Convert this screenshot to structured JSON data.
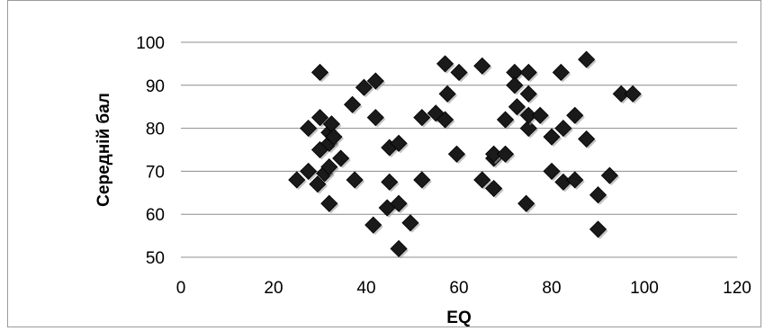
{
  "chart_data": {
    "type": "scatter",
    "xlabel": "EQ",
    "ylabel": "Середній бал",
    "xlim": [
      0,
      120
    ],
    "ylim": [
      50,
      100
    ],
    "x_ticks": [
      0,
      20,
      40,
      60,
      80,
      100,
      120
    ],
    "y_ticks": [
      50,
      60,
      70,
      80,
      90,
      100
    ],
    "grid": "horizontal",
    "marker": "diamond",
    "marker_color": "#1a1a1a",
    "series": [
      {
        "points": [
          [
            25,
            68
          ],
          [
            27.5,
            70
          ],
          [
            27.5,
            80
          ],
          [
            29.5,
            67
          ],
          [
            30,
            75
          ],
          [
            30,
            82.5
          ],
          [
            30,
            93
          ],
          [
            31,
            69.5
          ],
          [
            32,
            62.5
          ],
          [
            32,
            71
          ],
          [
            32,
            76.5
          ],
          [
            32,
            79
          ],
          [
            32.5,
            81
          ],
          [
            33,
            78
          ],
          [
            34.5,
            73
          ],
          [
            37,
            85.5
          ],
          [
            37.5,
            68
          ],
          [
            39.5,
            89.5
          ],
          [
            41.5,
            57.5
          ],
          [
            42,
            82.5
          ],
          [
            42,
            91
          ],
          [
            44.5,
            61.5
          ],
          [
            45,
            67.5
          ],
          [
            45,
            75.5
          ],
          [
            47,
            52
          ],
          [
            47,
            62.5
          ],
          [
            47,
            76.5
          ],
          [
            49.5,
            58
          ],
          [
            52,
            68
          ],
          [
            52,
            82.5
          ],
          [
            55,
            83.5
          ],
          [
            57,
            95
          ],
          [
            57,
            82
          ],
          [
            57.5,
            88
          ],
          [
            59.5,
            74
          ],
          [
            60,
            93
          ],
          [
            65,
            68
          ],
          [
            65,
            94.5
          ],
          [
            67.5,
            66
          ],
          [
            67.5,
            73
          ],
          [
            67.5,
            74
          ],
          [
            70,
            82
          ],
          [
            70,
            74
          ],
          [
            72,
            93
          ],
          [
            72,
            90
          ],
          [
            72.5,
            85
          ],
          [
            74.5,
            62.5
          ],
          [
            75,
            80
          ],
          [
            75,
            83
          ],
          [
            75,
            88
          ],
          [
            75,
            93
          ],
          [
            77.5,
            83
          ],
          [
            80,
            70
          ],
          [
            80,
            78
          ],
          [
            82,
            93
          ],
          [
            82.5,
            67.5
          ],
          [
            82.5,
            80
          ],
          [
            85,
            68
          ],
          [
            85,
            83
          ],
          [
            87.5,
            96
          ],
          [
            87.5,
            77.5
          ],
          [
            90,
            64.5
          ],
          [
            90,
            56.5
          ],
          [
            92.5,
            69
          ],
          [
            95,
            88
          ],
          [
            97.5,
            88
          ]
        ]
      }
    ]
  }
}
